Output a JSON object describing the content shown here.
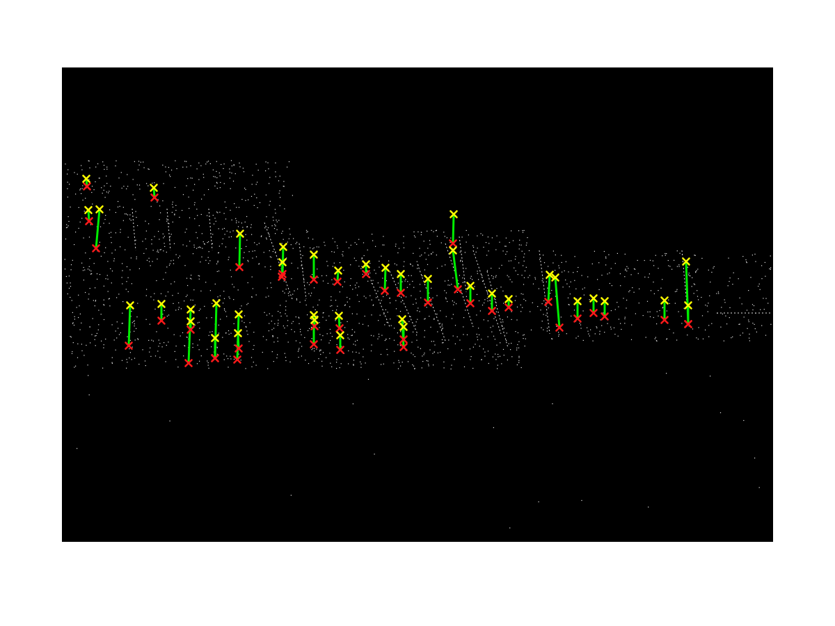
{
  "image": {
    "background_color": "#000000",
    "frame_color": "#ffffff",
    "edge_color": "#e6e6e6",
    "track_color": "#00ee00",
    "start_marker_color": "#ffff00",
    "end_marker_color": "#ff1a1a",
    "marker_symbol": "×"
  }
}
